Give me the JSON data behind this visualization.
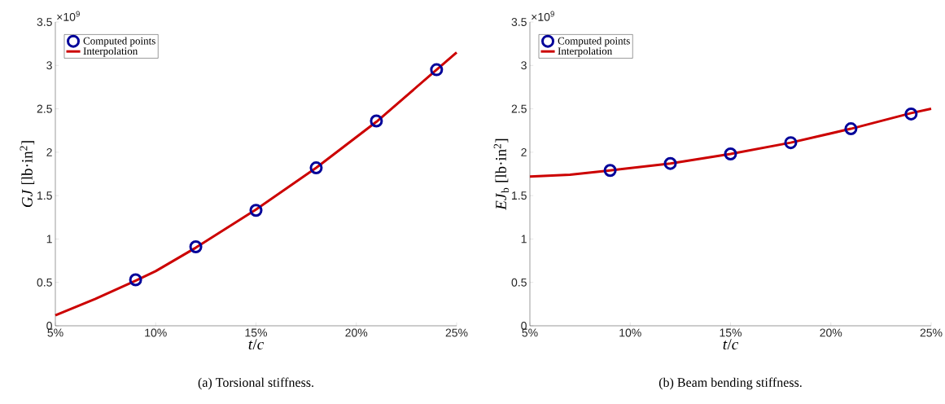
{
  "chart_data": [
    {
      "type": "line",
      "title": "(a)  Torsional stiffness.",
      "xlabel": "*t*/*c*",
      "ylabel": "*GJ* [lb·in$^{2}$]",
      "annotations": [
        "×10$^{9}$"
      ],
      "xlim": [
        5,
        25
      ],
      "ylim": [
        0,
        3.5
      ],
      "xticks": [
        {
          "value": 5,
          "label": "5%"
        },
        {
          "value": 10,
          "label": "10%"
        },
        {
          "value": 15,
          "label": "15%"
        },
        {
          "value": 20,
          "label": "20%"
        },
        {
          "value": 25,
          "label": "25%"
        }
      ],
      "yticks": [
        0,
        0.5,
        1,
        1.5,
        2,
        2.5,
        3,
        3.5
      ],
      "legend": "top left",
      "series": [
        {
          "name": "Computed points",
          "type": "scatter",
          "marker": "circle",
          "color": "#000099",
          "x": [
            9,
            12,
            15,
            18,
            21,
            24
          ],
          "values": [
            0.53,
            0.91,
            1.33,
            1.82,
            2.36,
            2.95
          ]
        },
        {
          "name": "Interpolation",
          "type": "line",
          "line_style": "solid",
          "color": "#cc0000",
          "x": [
            5,
            7,
            9,
            10,
            12,
            15,
            18,
            21,
            24,
            25
          ],
          "values": [
            0.12,
            0.31,
            0.52,
            0.63,
            0.9,
            1.34,
            1.82,
            2.35,
            2.95,
            3.15
          ]
        }
      ]
    },
    {
      "type": "line",
      "title": "(b)  Beam bending stiffness.",
      "xlabel": "*t*/*c*",
      "ylabel": "*EJ*$_{b}$ [lb·in$^{2}$]",
      "annotations": [
        "×10$^{9}$"
      ],
      "xlim": [
        5,
        25
      ],
      "ylim": [
        0,
        3.5
      ],
      "xticks": [
        {
          "value": 5,
          "label": "5%"
        },
        {
          "value": 10,
          "label": "10%"
        },
        {
          "value": 15,
          "label": "15%"
        },
        {
          "value": 20,
          "label": "20%"
        },
        {
          "value": 25,
          "label": "25%"
        }
      ],
      "yticks": [
        0,
        0.5,
        1,
        1.5,
        2,
        2.5,
        3,
        3.5
      ],
      "legend": "top left",
      "series": [
        {
          "name": "Computed points",
          "type": "scatter",
          "marker": "circle",
          "color": "#000099",
          "x": [
            9,
            12,
            15,
            18,
            21,
            24
          ],
          "values": [
            1.79,
            1.87,
            1.98,
            2.11,
            2.27,
            2.44
          ]
        },
        {
          "name": "Interpolation",
          "type": "line",
          "line_style": "solid",
          "color": "#cc0000",
          "x": [
            5,
            7,
            9,
            12,
            15,
            18,
            21,
            24,
            25
          ],
          "values": [
            1.72,
            1.74,
            1.79,
            1.87,
            1.98,
            2.11,
            2.27,
            2.45,
            2.5
          ]
        }
      ]
    }
  ]
}
